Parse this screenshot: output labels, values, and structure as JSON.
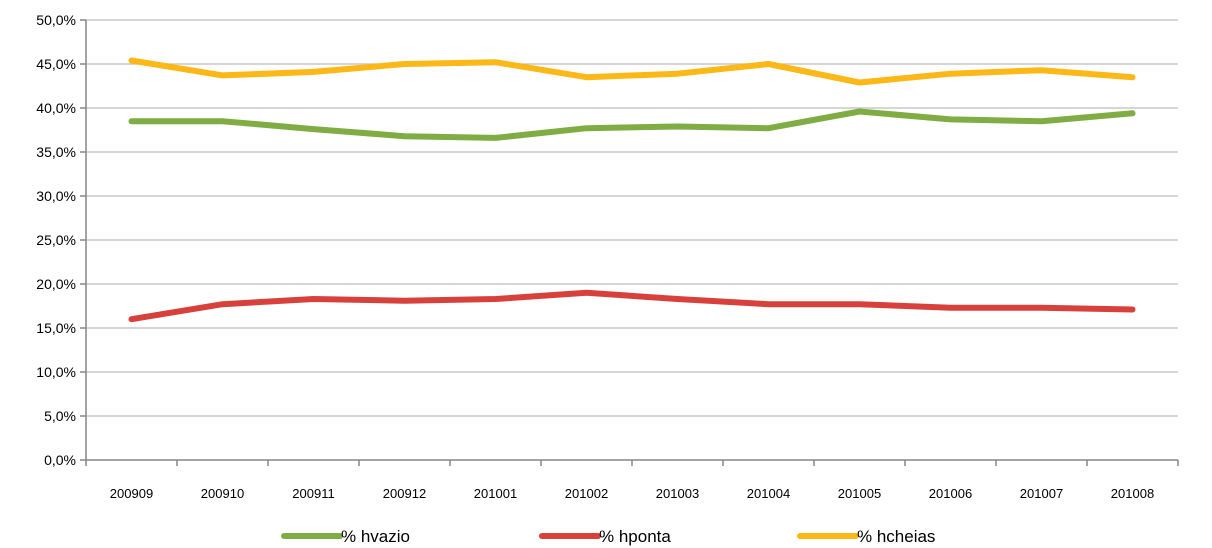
{
  "chart_data": {
    "type": "line",
    "categories": [
      "200909",
      "200910",
      "200911",
      "200912",
      "201001",
      "201002",
      "201003",
      "201004",
      "201005",
      "201006",
      "201007",
      "201008"
    ],
    "series": [
      {
        "name": "% hvazio",
        "color": "#7fac43",
        "values": [
          38.5,
          38.5,
          37.6,
          36.8,
          36.6,
          37.7,
          37.9,
          37.7,
          39.6,
          38.7,
          38.5,
          39.4
        ]
      },
      {
        "name": "% hponta",
        "color": "#d8413b",
        "values": [
          16.0,
          17.7,
          18.3,
          18.1,
          18.3,
          19.0,
          18.3,
          17.7,
          17.7,
          17.3,
          17.3,
          17.1
        ]
      },
      {
        "name": "% hcheias",
        "color": "#fbb817",
        "values": [
          45.4,
          43.7,
          44.1,
          45.0,
          45.2,
          43.5,
          43.9,
          45.0,
          42.9,
          43.9,
          44.3,
          43.5
        ]
      }
    ],
    "y_ticks": [
      "0,0%",
      "5,0%",
      "10,0%",
      "15,0%",
      "20,0%",
      "25,0%",
      "30,0%",
      "35,0%",
      "40,0%",
      "45,0%",
      "50,0%"
    ],
    "ylim": [
      0,
      50
    ],
    "grid": true,
    "legend_position": "bottom"
  }
}
